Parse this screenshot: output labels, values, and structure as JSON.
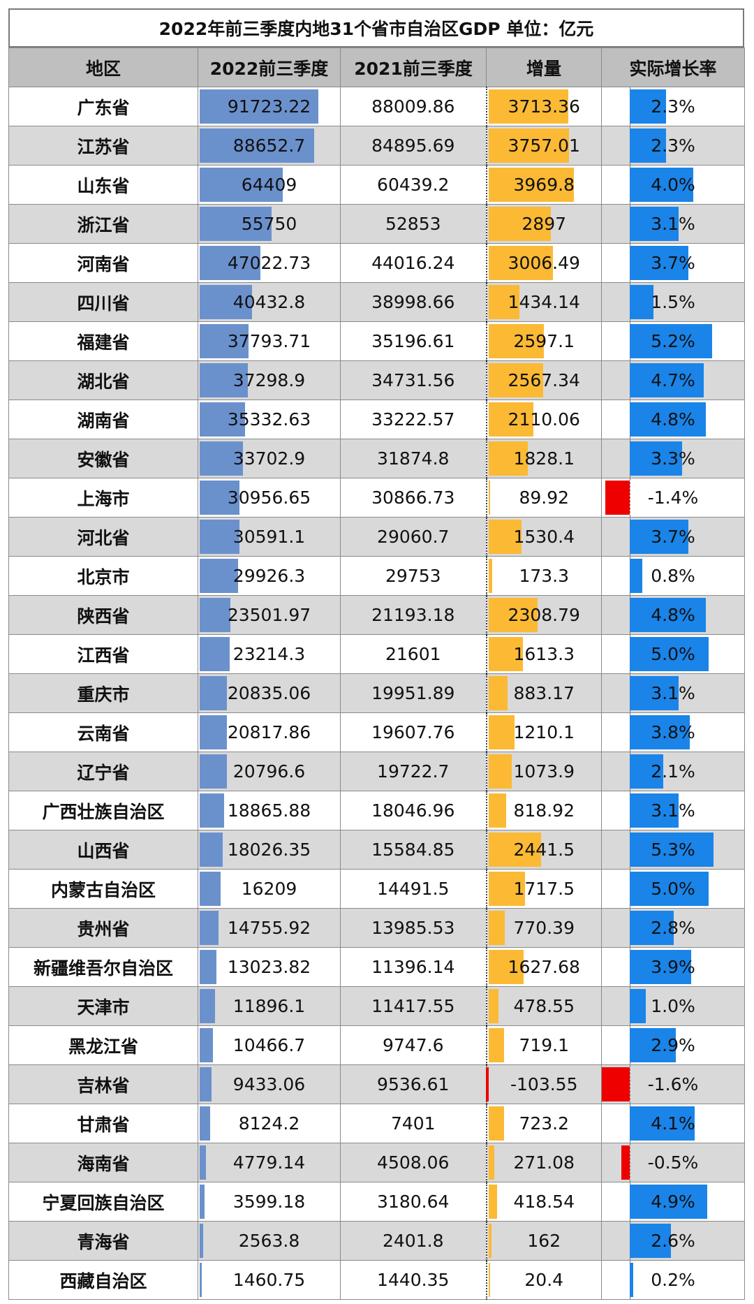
{
  "chart_data": {
    "type": "table",
    "title": "2022年前三季度内地31个省市自治区GDP  单位：亿元",
    "headers": [
      "地区",
      "2022前三季度",
      "2021前三季度",
      "增量",
      "实际增长率"
    ],
    "rows": [
      {
        "region": "广东省",
        "gdp2022": "91723.22",
        "gdp2021": "88009.86",
        "increase": "3713.36",
        "rate": "2.3%"
      },
      {
        "region": "江苏省",
        "gdp2022": "88652.7",
        "gdp2021": "84895.69",
        "increase": "3757.01",
        "rate": "2.3%"
      },
      {
        "region": "山东省",
        "gdp2022": "64409",
        "gdp2021": "60439.2",
        "increase": "3969.8",
        "rate": "4.0%"
      },
      {
        "region": "浙江省",
        "gdp2022": "55750",
        "gdp2021": "52853",
        "increase": "2897",
        "rate": "3.1%"
      },
      {
        "region": "河南省",
        "gdp2022": "47022.73",
        "gdp2021": "44016.24",
        "increase": "3006.49",
        "rate": "3.7%"
      },
      {
        "region": "四川省",
        "gdp2022": "40432.8",
        "gdp2021": "38998.66",
        "increase": "1434.14",
        "rate": "1.5%"
      },
      {
        "region": "福建省",
        "gdp2022": "37793.71",
        "gdp2021": "35196.61",
        "increase": "2597.1",
        "rate": "5.2%"
      },
      {
        "region": "湖北省",
        "gdp2022": "37298.9",
        "gdp2021": "34731.56",
        "increase": "2567.34",
        "rate": "4.7%"
      },
      {
        "region": "湖南省",
        "gdp2022": "35332.63",
        "gdp2021": "33222.57",
        "increase": "2110.06",
        "rate": "4.8%"
      },
      {
        "region": "安徽省",
        "gdp2022": "33702.9",
        "gdp2021": "31874.8",
        "increase": "1828.1",
        "rate": "3.3%"
      },
      {
        "region": "上海市",
        "gdp2022": "30956.65",
        "gdp2021": "30866.73",
        "increase": "89.92",
        "rate": "-1.4%"
      },
      {
        "region": "河北省",
        "gdp2022": "30591.1",
        "gdp2021": "29060.7",
        "increase": "1530.4",
        "rate": "3.7%"
      },
      {
        "region": "北京市",
        "gdp2022": "29926.3",
        "gdp2021": "29753",
        "increase": "173.3",
        "rate": "0.8%"
      },
      {
        "region": "陕西省",
        "gdp2022": "23501.97",
        "gdp2021": "21193.18",
        "increase": "2308.79",
        "rate": "4.8%"
      },
      {
        "region": "江西省",
        "gdp2022": "23214.3",
        "gdp2021": "21601",
        "increase": "1613.3",
        "rate": "5.0%"
      },
      {
        "region": "重庆市",
        "gdp2022": "20835.06",
        "gdp2021": "19951.89",
        "increase": "883.17",
        "rate": "3.1%"
      },
      {
        "region": "云南省",
        "gdp2022": "20817.86",
        "gdp2021": "19607.76",
        "increase": "1210.1",
        "rate": "3.8%"
      },
      {
        "region": "辽宁省",
        "gdp2022": "20796.6",
        "gdp2021": "19722.7",
        "increase": "1073.9",
        "rate": "2.1%"
      },
      {
        "region": "广西壮族自治区",
        "gdp2022": "18865.88",
        "gdp2021": "18046.96",
        "increase": "818.92",
        "rate": "3.1%"
      },
      {
        "region": "山西省",
        "gdp2022": "18026.35",
        "gdp2021": "15584.85",
        "increase": "2441.5",
        "rate": "5.3%"
      },
      {
        "region": "内蒙古自治区",
        "gdp2022": "16209",
        "gdp2021": "14491.5",
        "increase": "1717.5",
        "rate": "5.0%"
      },
      {
        "region": "贵州省",
        "gdp2022": "14755.92",
        "gdp2021": "13985.53",
        "increase": "770.39",
        "rate": "2.8%"
      },
      {
        "region": "新疆维吾尔自治区",
        "gdp2022": "13023.82",
        "gdp2021": "11396.14",
        "increase": "1627.68",
        "rate": "3.9%"
      },
      {
        "region": "天津市",
        "gdp2022": "11896.1",
        "gdp2021": "11417.55",
        "increase": "478.55",
        "rate": "1.0%"
      },
      {
        "region": "黑龙江省",
        "gdp2022": "10466.7",
        "gdp2021": "9747.6",
        "increase": "719.1",
        "rate": "2.9%"
      },
      {
        "region": "吉林省",
        "gdp2022": "9433.06",
        "gdp2021": "9536.61",
        "increase": "-103.55",
        "rate": "-1.6%"
      },
      {
        "region": "甘肃省",
        "gdp2022": "8124.2",
        "gdp2021": "7401",
        "increase": "723.2",
        "rate": "4.1%"
      },
      {
        "region": "海南省",
        "gdp2022": "4779.14",
        "gdp2021": "4508.06",
        "increase": "271.08",
        "rate": "-0.5%"
      },
      {
        "region": "宁夏回族自治区",
        "gdp2022": "3599.18",
        "gdp2021": "3180.64",
        "increase": "418.54",
        "rate": "4.9%"
      },
      {
        "region": "青海省",
        "gdp2022": "2563.8",
        "gdp2021": "2401.8",
        "increase": "162",
        "rate": "2.6%"
      },
      {
        "region": "西藏自治区",
        "gdp2022": "1460.75",
        "gdp2021": "1440.35",
        "increase": "20.4",
        "rate": "0.2%"
      }
    ],
    "colors": {
      "gdp_bar": "#6b91cd",
      "increase_bar": "#fbb934",
      "rate_bar": "#1a84e8",
      "negative_bar": "#ee0000",
      "header_bg": "#bfbfbf",
      "stripe_bg": "#d9d9d9"
    }
  }
}
